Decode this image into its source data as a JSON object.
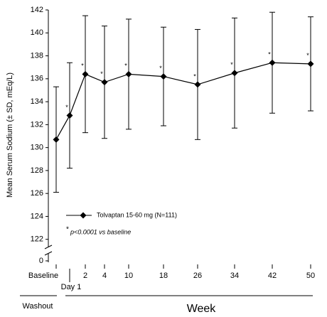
{
  "chart_data": {
    "type": "line",
    "y_label": "Mean Serum Sodium (± SD, mEq/L)",
    "x_label": "Week",
    "x_group_label": "Washout",
    "categories": [
      "Baseline",
      "Day 1",
      "2",
      "4",
      "10",
      "18",
      "26",
      "34",
      "42",
      "50"
    ],
    "series": [
      {
        "name": "Tolvaptan 15-60 mg (N=111)",
        "color": "#000000",
        "values": [
          130.7,
          132.8,
          136.4,
          135.7,
          136.4,
          136.2,
          135.5,
          136.5,
          137.4,
          137.3
        ],
        "errors": [
          4.6,
          4.6,
          5.1,
          4.9,
          4.8,
          4.3,
          4.8,
          4.8,
          4.4,
          4.1
        ]
      }
    ],
    "significant": [
      false,
      true,
      true,
      true,
      true,
      true,
      true,
      true,
      true,
      true
    ],
    "footnote_symbol": "*",
    "footnote": "p<0.0001 vs baseline",
    "ylim": [
      120,
      142
    ],
    "yticks": [
      0,
      122,
      124,
      126,
      128,
      130,
      132,
      134,
      136,
      138,
      140,
      142
    ],
    "y_break": true,
    "grid": false
  }
}
